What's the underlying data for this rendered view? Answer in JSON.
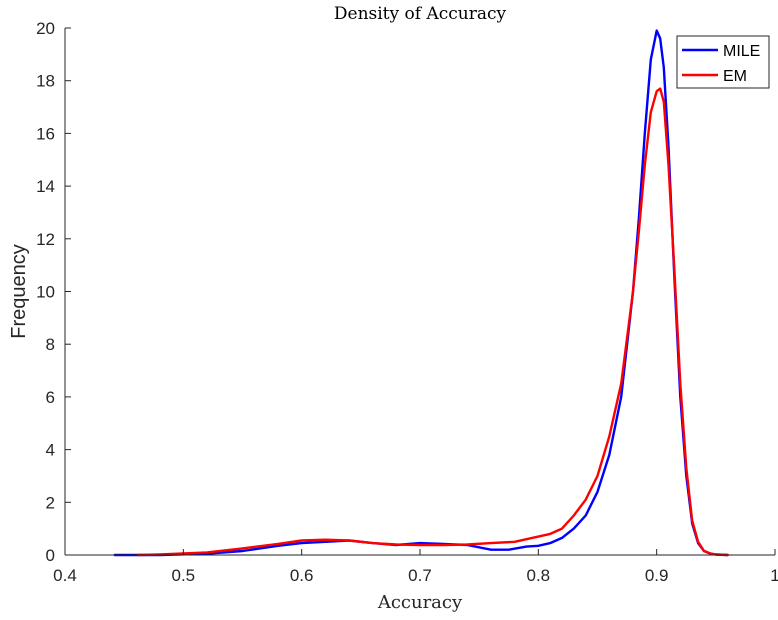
{
  "chart_data": {
    "type": "line",
    "title": "Density of Accuracy",
    "xlabel": "Accuracy",
    "ylabel": "Frequency",
    "xlim": [
      0.4,
      1
    ],
    "ylim": [
      0,
      20
    ],
    "xticks": [
      "0.4",
      "0.5",
      "0.6",
      "0.7",
      "0.8",
      "0.9",
      "1"
    ],
    "yticks": [
      "0",
      "2",
      "4",
      "6",
      "8",
      "10",
      "12",
      "14",
      "16",
      "18",
      "20"
    ],
    "grid": false,
    "legend_position": "top-right",
    "series": [
      {
        "name": "MILE",
        "color": "#0000ff",
        "x": [
          0.442,
          0.48,
          0.52,
          0.55,
          0.58,
          0.6,
          0.62,
          0.64,
          0.66,
          0.68,
          0.7,
          0.72,
          0.74,
          0.76,
          0.775,
          0.79,
          0.8,
          0.81,
          0.82,
          0.83,
          0.84,
          0.85,
          0.86,
          0.87,
          0.88,
          0.885,
          0.89,
          0.895,
          0.9,
          0.903,
          0.906,
          0.91,
          0.915,
          0.92,
          0.925,
          0.93,
          0.935,
          0.94,
          0.945,
          0.95,
          0.96
        ],
        "y": [
          0,
          0,
          0.05,
          0.15,
          0.35,
          0.45,
          0.5,
          0.55,
          0.45,
          0.38,
          0.45,
          0.42,
          0.38,
          0.2,
          0.2,
          0.32,
          0.35,
          0.45,
          0.65,
          1.0,
          1.5,
          2.4,
          3.8,
          6.0,
          10.0,
          12.8,
          16.0,
          18.8,
          19.9,
          19.6,
          18.5,
          15.5,
          10.5,
          6.0,
          3.0,
          1.2,
          0.45,
          0.15,
          0.06,
          0.02,
          0
        ]
      },
      {
        "name": "EM",
        "color": "#ff0000",
        "x": [
          0.462,
          0.48,
          0.52,
          0.55,
          0.58,
          0.6,
          0.62,
          0.64,
          0.66,
          0.68,
          0.7,
          0.72,
          0.74,
          0.76,
          0.78,
          0.79,
          0.8,
          0.81,
          0.82,
          0.83,
          0.84,
          0.85,
          0.86,
          0.87,
          0.88,
          0.885,
          0.89,
          0.895,
          0.9,
          0.903,
          0.906,
          0.91,
          0.915,
          0.92,
          0.925,
          0.93,
          0.935,
          0.94,
          0.945,
          0.95,
          0.96
        ],
        "y": [
          0,
          0.02,
          0.1,
          0.25,
          0.42,
          0.55,
          0.58,
          0.55,
          0.45,
          0.4,
          0.38,
          0.38,
          0.4,
          0.45,
          0.5,
          0.6,
          0.7,
          0.8,
          1.0,
          1.5,
          2.1,
          3.0,
          4.5,
          6.5,
          10.0,
          12.3,
          14.8,
          16.8,
          17.6,
          17.7,
          17.2,
          14.8,
          10.8,
          6.5,
          3.3,
          1.3,
          0.5,
          0.15,
          0.06,
          0.02,
          0
        ]
      }
    ]
  }
}
